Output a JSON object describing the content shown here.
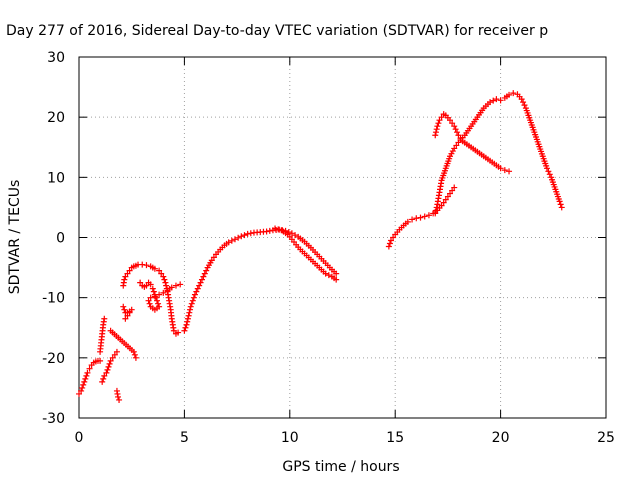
{
  "chart_data": {
    "type": "scatter",
    "title": "Day 277 of 2016, Sidereal Day-to-day VTEC variation (SDTVAR) for receiver p",
    "xlabel": "GPS time / hours",
    "ylabel": "SDTVAR / TECUs",
    "xlim": [
      0,
      25
    ],
    "ylim": [
      -30,
      30
    ],
    "x_ticks": [
      0,
      5,
      10,
      15,
      20,
      25
    ],
    "y_ticks": [
      -30,
      -20,
      -10,
      0,
      10,
      20,
      30
    ],
    "grid": true,
    "legend": "none",
    "marker": "+",
    "marker_color": "#ff0000",
    "series": [
      {
        "points": [
          [
            0.0,
            -26
          ],
          [
            0.1,
            -25.5
          ],
          [
            0.2,
            -24.5
          ],
          [
            0.3,
            -23.5
          ],
          [
            0.4,
            -22.5
          ],
          [
            0.5,
            -21.8
          ],
          [
            0.6,
            -21.2
          ],
          [
            0.7,
            -20.8
          ],
          [
            0.8,
            -20.6
          ],
          [
            0.9,
            -20.5
          ],
          [
            1.0,
            -20.5
          ]
        ]
      },
      {
        "points": [
          [
            1.0,
            -19
          ],
          [
            1.05,
            -17.5
          ],
          [
            1.1,
            -16
          ],
          [
            1.15,
            -14.5
          ],
          [
            1.2,
            -13.5
          ]
        ]
      },
      {
        "points": [
          [
            1.1,
            -24
          ],
          [
            1.2,
            -23
          ],
          [
            1.3,
            -22.5
          ],
          [
            1.4,
            -21.5
          ],
          [
            1.5,
            -20.5
          ],
          [
            1.6,
            -20
          ],
          [
            1.7,
            -19.5
          ],
          [
            1.8,
            -19
          ]
        ]
      },
      {
        "points": [
          [
            1.8,
            -25.5
          ],
          [
            1.85,
            -26.5
          ],
          [
            1.9,
            -27
          ],
          [
            1.5,
            -15.5
          ],
          [
            2.6,
            -19
          ],
          [
            2.7,
            -20
          ]
        ]
      },
      {
        "points": [
          [
            2.1,
            -8
          ],
          [
            2.15,
            -7
          ],
          [
            2.2,
            -6.5
          ],
          [
            2.3,
            -6
          ],
          [
            2.4,
            -5.5
          ],
          [
            2.5,
            -5
          ],
          [
            2.6,
            -4.8
          ],
          [
            2.7,
            -4.7
          ],
          [
            2.8,
            -4.5
          ],
          [
            3.0,
            -4.5
          ],
          [
            3.2,
            -4.6
          ],
          [
            3.4,
            -4.8
          ],
          [
            3.5,
            -5
          ],
          [
            3.6,
            -5.2
          ],
          [
            3.8,
            -5.5
          ],
          [
            3.9,
            -6
          ],
          [
            4.0,
            -6.5
          ],
          [
            4.1,
            -7.5
          ],
          [
            4.2,
            -9
          ],
          [
            4.3,
            -11
          ],
          [
            4.35,
            -12
          ],
          [
            4.4,
            -13.5
          ],
          [
            4.45,
            -14.5
          ],
          [
            4.5,
            -15.5
          ],
          [
            4.6,
            -16
          ],
          [
            4.7,
            -15.8
          ]
        ]
      },
      {
        "points": [
          [
            2.1,
            -11.5
          ],
          [
            2.15,
            -12
          ],
          [
            2.2,
            -12.5
          ],
          [
            2.3,
            -12.5
          ],
          [
            2.4,
            -12.3
          ],
          [
            2.5,
            -12
          ],
          [
            2.3,
            -13
          ],
          [
            2.2,
            -13.5
          ]
        ]
      },
      {
        "points": [
          [
            2.9,
            -7.5
          ],
          [
            3.0,
            -8
          ],
          [
            3.1,
            -8.2
          ],
          [
            3.2,
            -8
          ],
          [
            3.3,
            -7.5
          ],
          [
            3.4,
            -7.8
          ],
          [
            3.5,
            -8.5
          ],
          [
            3.6,
            -9.5
          ],
          [
            3.7,
            -10.5
          ],
          [
            3.8,
            -11.5
          ],
          [
            3.6,
            -12
          ],
          [
            3.4,
            -11.5
          ],
          [
            3.3,
            -10.5
          ],
          [
            3.4,
            -10
          ],
          [
            3.6,
            -9.8
          ],
          [
            3.8,
            -9.5
          ],
          [
            4.0,
            -9.2
          ],
          [
            4.2,
            -8.8
          ],
          [
            4.4,
            -8.3
          ],
          [
            4.6,
            -8
          ],
          [
            4.8,
            -7.8
          ]
        ]
      },
      {
        "points": [
          [
            5.0,
            -15.5
          ],
          [
            5.1,
            -14.5
          ],
          [
            5.2,
            -13
          ],
          [
            5.3,
            -11.5
          ],
          [
            5.4,
            -10.5
          ],
          [
            5.5,
            -9.5
          ],
          [
            5.7,
            -8
          ],
          [
            5.9,
            -6.5
          ],
          [
            6.1,
            -5
          ],
          [
            6.3,
            -3.8
          ],
          [
            6.5,
            -2.8
          ],
          [
            6.7,
            -2
          ],
          [
            6.9,
            -1.3
          ],
          [
            7.1,
            -0.8
          ],
          [
            7.4,
            -0.3
          ],
          [
            7.7,
            0.2
          ],
          [
            8.0,
            0.6
          ],
          [
            8.3,
            0.8
          ],
          [
            8.6,
            0.9
          ],
          [
            8.9,
            1
          ],
          [
            9.2,
            1.2
          ],
          [
            9.5,
            1.3
          ],
          [
            9.8,
            1.1
          ],
          [
            10.1,
            0.7
          ],
          [
            10.4,
            0.1
          ],
          [
            10.7,
            -0.7
          ],
          [
            11.0,
            -1.7
          ],
          [
            11.3,
            -2.8
          ],
          [
            11.6,
            -3.9
          ],
          [
            11.9,
            -5
          ],
          [
            12.2,
            -6
          ]
        ]
      },
      {
        "points": [
          [
            9.3,
            1.5
          ],
          [
            9.6,
            1.2
          ],
          [
            9.9,
            0.5
          ],
          [
            10.1,
            -0.3
          ],
          [
            10.3,
            -1.2
          ],
          [
            10.5,
            -2
          ],
          [
            10.8,
            -3
          ],
          [
            11.1,
            -4
          ],
          [
            11.4,
            -5
          ],
          [
            11.7,
            -6
          ],
          [
            12.0,
            -6.5
          ],
          [
            12.2,
            -7
          ]
        ]
      },
      {
        "points": [
          [
            14.7,
            -1.5
          ],
          [
            14.8,
            -0.5
          ],
          [
            15.0,
            0.5
          ],
          [
            15.2,
            1.3
          ],
          [
            15.4,
            2
          ],
          [
            15.6,
            2.6
          ],
          [
            15.8,
            3
          ],
          [
            16.0,
            3.2
          ],
          [
            16.2,
            3.3
          ],
          [
            16.4,
            3.5
          ],
          [
            16.6,
            3.7
          ],
          [
            16.8,
            4
          ],
          [
            17.0,
            4.5
          ],
          [
            17.2,
            5.3
          ],
          [
            17.4,
            6.3
          ],
          [
            17.6,
            7.3
          ],
          [
            17.8,
            8.3
          ]
        ]
      },
      {
        "points": [
          [
            16.9,
            4
          ],
          [
            17.0,
            5.5
          ],
          [
            17.1,
            7.5
          ],
          [
            17.2,
            9.5
          ],
          [
            17.4,
            11.5
          ],
          [
            17.6,
            13.5
          ],
          [
            17.8,
            14.8
          ],
          [
            18.0,
            15.8
          ],
          [
            18.3,
            17
          ],
          [
            18.6,
            18.5
          ],
          [
            18.9,
            20
          ],
          [
            19.2,
            21.5
          ],
          [
            19.5,
            22.5
          ],
          [
            19.8,
            23
          ],
          [
            20.0,
            22.8
          ],
          [
            20.2,
            23.2
          ],
          [
            20.4,
            23.7
          ],
          [
            20.6,
            24
          ],
          [
            20.8,
            23.8
          ],
          [
            21.0,
            23
          ],
          [
            21.2,
            21.5
          ],
          [
            21.4,
            19.5
          ],
          [
            21.6,
            17.5
          ],
          [
            21.8,
            15.5
          ],
          [
            22.0,
            13.5
          ],
          [
            22.2,
            11.5
          ],
          [
            22.4,
            10
          ],
          [
            22.6,
            8
          ],
          [
            22.8,
            6
          ],
          [
            22.9,
            5
          ]
        ]
      },
      {
        "points": [
          [
            16.9,
            17
          ],
          [
            17.0,
            18.5
          ],
          [
            17.1,
            19.5
          ],
          [
            17.2,
            20
          ],
          [
            17.3,
            20.5
          ],
          [
            17.4,
            20.3
          ],
          [
            17.6,
            19.5
          ],
          [
            17.8,
            18.5
          ],
          [
            18.0,
            17
          ],
          [
            18.2,
            16
          ],
          [
            18.4,
            15.5
          ],
          [
            18.6,
            15
          ],
          [
            18.8,
            14.5
          ],
          [
            19.0,
            14
          ],
          [
            19.2,
            13.5
          ],
          [
            19.4,
            13
          ],
          [
            19.6,
            12.5
          ],
          [
            19.8,
            12
          ],
          [
            20.0,
            11.5
          ],
          [
            20.2,
            11.2
          ],
          [
            20.4,
            11
          ]
        ]
      }
    ]
  }
}
